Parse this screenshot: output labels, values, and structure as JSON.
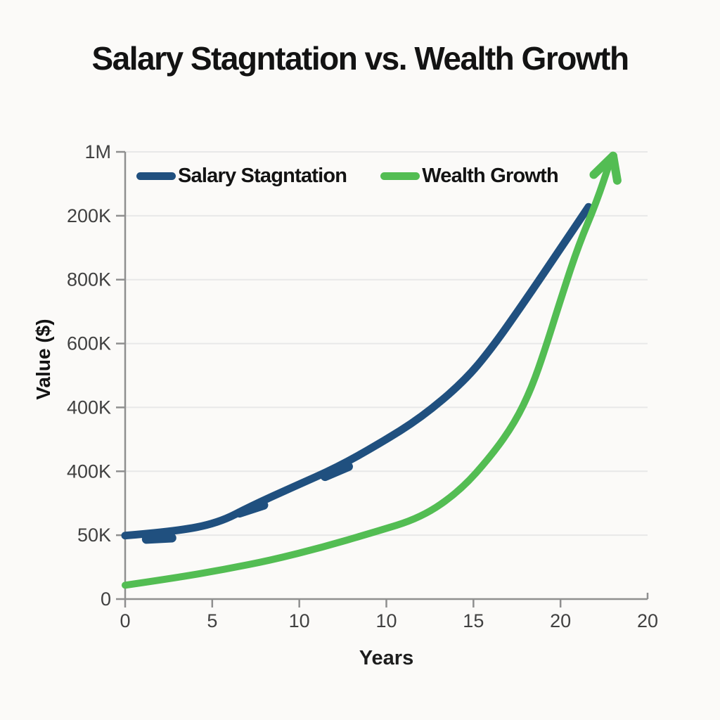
{
  "chart_data": {
    "type": "line",
    "title": "Salary Stagntation vs. Wealth Growth",
    "xlabel": "Years",
    "ylabel": "Value ($)",
    "x_tick_labels": [
      "0",
      "5",
      "10",
      "10",
      "15",
      "20",
      "20"
    ],
    "y_tick_labels_top_to_bottom": [
      "1M",
      "200K",
      "800K",
      "600K",
      "400K",
      "400K",
      "50K",
      "0"
    ],
    "grid": "horizontal-only",
    "legend_position": "inside-top-left",
    "points_convention": "points_frac are fractions of the plot area: x 0=left 1=right, y 0=bottom 1=top (source image tick labels are internally inconsistent)",
    "series": [
      {
        "name": "Salary Stagntation",
        "color": "#20507f",
        "stroke_width": 11,
        "points_frac": [
          [
            0.0,
            0.142
          ],
          [
            0.094,
            0.151
          ],
          [
            0.178,
            0.17
          ],
          [
            0.243,
            0.209
          ],
          [
            0.324,
            0.252
          ],
          [
            0.405,
            0.294
          ],
          [
            0.486,
            0.347
          ],
          [
            0.567,
            0.406
          ],
          [
            0.648,
            0.486
          ],
          [
            0.702,
            0.561
          ],
          [
            0.769,
            0.673
          ],
          [
            0.83,
            0.778
          ],
          [
            0.887,
            0.877
          ]
        ],
        "dash_markers_frac": [
          {
            "x": 0.065,
            "y": 0.14,
            "angle": -3
          },
          {
            "x": 0.242,
            "y": 0.206,
            "angle": -18
          },
          {
            "x": 0.405,
            "y": 0.29,
            "angle": -23
          }
        ]
      },
      {
        "name": "Wealth Growth",
        "color": "#53bd53",
        "stroke_width": 10,
        "points_frac": [
          [
            0.0,
            0.031
          ],
          [
            0.094,
            0.047
          ],
          [
            0.189,
            0.066
          ],
          [
            0.283,
            0.088
          ],
          [
            0.378,
            0.116
          ],
          [
            0.472,
            0.148
          ],
          [
            0.567,
            0.182
          ],
          [
            0.641,
            0.242
          ],
          [
            0.702,
            0.322
          ],
          [
            0.746,
            0.395
          ],
          [
            0.778,
            0.472
          ],
          [
            0.805,
            0.563
          ],
          [
            0.832,
            0.664
          ],
          [
            0.867,
            0.789
          ],
          [
            0.902,
            0.887
          ],
          [
            0.929,
            0.981
          ]
        ],
        "arrow": {
          "tip_frac": [
            0.934,
            0.991
          ],
          "barbs_frac": [
            [
              0.897,
              0.949
            ],
            [
              0.942,
              0.936
            ]
          ]
        }
      }
    ],
    "style": {
      "gridline_color": "#e8e8e8",
      "axis_color": "#8f8f8f",
      "tick_label_color": "#414141",
      "background": "#fbfaf8"
    }
  }
}
